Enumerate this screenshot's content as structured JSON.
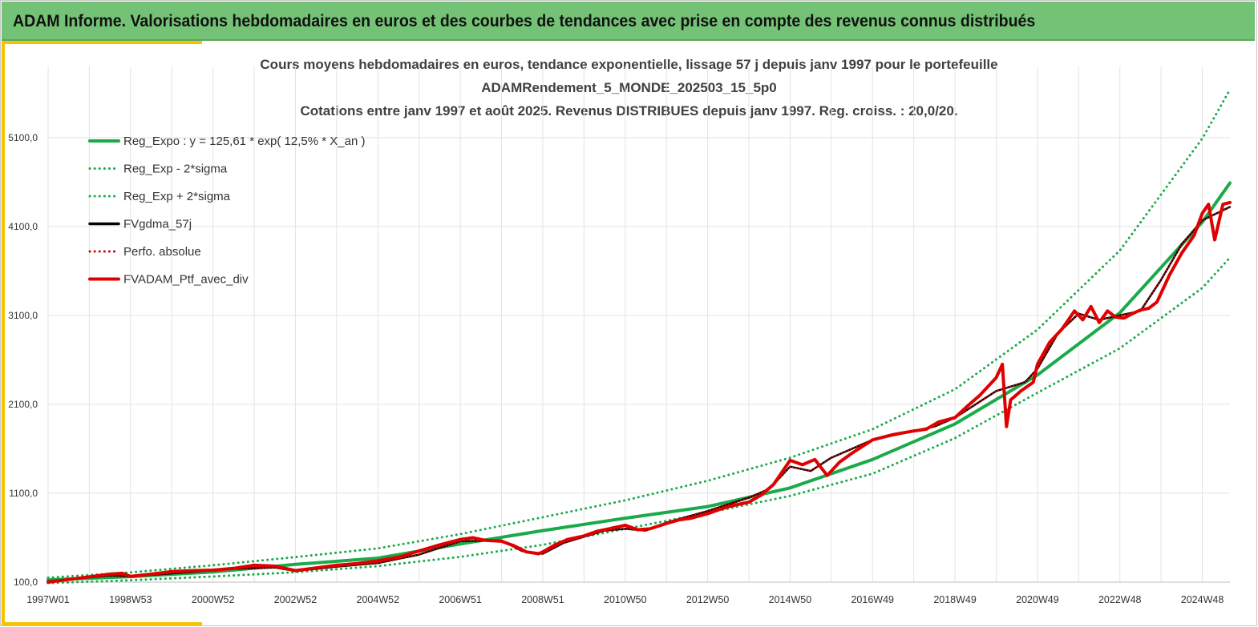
{
  "banner": {
    "title": "ADAM Informe. Valorisations hebdomadaires en euros et des courbes de tendances avec prise en compte des revenus connus distribués"
  },
  "colors": {
    "banner": "#74c276",
    "accent": "#f5c200",
    "trend": "#1aaa4a",
    "portfolio": "#e00000",
    "smooth": "#000000",
    "grid": "#e3e3e3"
  },
  "chart_data": {
    "type": "line",
    "title_lines": [
      "Cours moyens hebdomadaires  en euros, tendance exponentielle, lissage 57 j depuis janv 1997 pour le portefeuille",
      "ADAMRendement_5_MONDE_202503_15_5p0",
      "Cotations  entre janv 1997 et août 2025. Revenus DISTRIBUES depuis janv 1997. Reg. croiss. : 20,0/20."
    ],
    "xlabel": "",
    "ylabel": "",
    "ylim": [
      100,
      5900
    ],
    "xlim": [
      1997.0,
      2025.67
    ],
    "y_ticks": [
      "100,0",
      "1100,0",
      "2100,0",
      "3100,0",
      "4100,0",
      "5100,0"
    ],
    "x_ticks": [
      {
        "label": "1997W01",
        "x": 1997.0
      },
      {
        "label": "1998W53",
        "x": 1999.0
      },
      {
        "label": "2000W52",
        "x": 2001.0
      },
      {
        "label": "2002W52",
        "x": 2003.0
      },
      {
        "label": "2004W52",
        "x": 2005.0
      },
      {
        "label": "2006W51",
        "x": 2007.0
      },
      {
        "label": "2008W51",
        "x": 2009.0
      },
      {
        "label": "2010W50",
        "x": 2011.0
      },
      {
        "label": "2012W50",
        "x": 2013.0
      },
      {
        "label": "2014W50",
        "x": 2015.0
      },
      {
        "label": "2016W49",
        "x": 2017.0
      },
      {
        "label": "2018W49",
        "x": 2019.0
      },
      {
        "label": "2020W49",
        "x": 2021.0
      },
      {
        "label": "2022W48",
        "x": 2023.0
      },
      {
        "label": "2024W48",
        "x": 2025.0
      }
    ],
    "grid": true,
    "legend_position": "top-left",
    "series": [
      {
        "name": "Reg_Expo : y = 125,61 * exp( 12,5% *  X_an )",
        "style": "solid-thick",
        "color": "#1aaa4a",
        "x": [
          1997.0,
          1999.0,
          2001.0,
          2003.0,
          2005.0,
          2007.0,
          2009.0,
          2011.0,
          2013.0,
          2015.0,
          2017.0,
          2019.0,
          2021.0,
          2023.0,
          2025.0,
          2025.67
        ],
        "values": [
          126,
          162,
          215,
          300,
          370,
          530,
          680,
          820,
          950,
          1160,
          1480,
          1880,
          2430,
          3130,
          4150,
          4590
        ]
      },
      {
        "name": "Reg_Exp - 2*sigma",
        "style": "dotted",
        "color": "#1aaa4a",
        "x": [
          1997.0,
          1999.0,
          2001.0,
          2003.0,
          2005.0,
          2007.0,
          2009.0,
          2011.0,
          2013.0,
          2015.0,
          2017.0,
          2019.0,
          2021.0,
          2023.0,
          2025.0,
          2025.67
        ],
        "values": [
          90,
          122,
          164,
          212,
          280,
          385,
          520,
          700,
          880,
          1070,
          1320,
          1720,
          2230,
          2730,
          3410,
          3750
        ]
      },
      {
        "name": "Reg_Exp + 2*sigma",
        "style": "dotted",
        "color": "#1aaa4a",
        "x": [
          1997.0,
          1999.0,
          2001.0,
          2003.0,
          2005.0,
          2007.0,
          2009.0,
          2011.0,
          2013.0,
          2015.0,
          2017.0,
          2019.0,
          2021.0,
          2023.0,
          2025.0,
          2025.67
        ],
        "values": [
          150,
          210,
          290,
          382,
          480,
          640,
          830,
          1020,
          1240,
          1500,
          1820,
          2270,
          2940,
          3830,
          5090,
          5640
        ]
      },
      {
        "name": "FVgdma_57j",
        "style": "solid",
        "color": "#000000",
        "x": [
          1997.0,
          1998.5,
          1999.0,
          2000.5,
          2001.5,
          2002.5,
          2003.0,
          2004.0,
          2005.0,
          2006.0,
          2007.0,
          2008.0,
          2008.5,
          2009.0,
          2009.5,
          2010.5,
          2011.0,
          2011.5,
          2012.0,
          2013.0,
          2014.0,
          2014.5,
          2015.0,
          2015.5,
          2016.0,
          2017.0,
          2018.0,
          2018.5,
          2019.0,
          2020.0,
          2020.7,
          2021.0,
          2021.5,
          2022.0,
          2022.5,
          2023.0,
          2023.5,
          2024.0,
          2024.5,
          2025.0,
          2025.67
        ],
        "values": [
          110,
          175,
          165,
          215,
          250,
          265,
          225,
          275,
          315,
          410,
          560,
          570,
          450,
          420,
          540,
          680,
          700,
          680,
          770,
          900,
          1050,
          1150,
          1400,
          1350,
          1500,
          1700,
          1800,
          1850,
          1950,
          2250,
          2350,
          2500,
          2900,
          3120,
          3050,
          3100,
          3150,
          3500,
          3900,
          4170,
          4320
        ]
      },
      {
        "name": "Perfo. absolue",
        "style": "dotted",
        "color": "#e00000",
        "x": [
          1997.0,
          1998.5,
          1999.0,
          2000.5,
          2001.5,
          2002.5,
          2003.0,
          2004.0,
          2005.0,
          2006.0,
          2007.0,
          2008.0,
          2008.5,
          2009.0,
          2009.5,
          2010.5,
          2011.0,
          2011.5,
          2012.0,
          2013.0,
          2014.0,
          2014.5,
          2015.0,
          2015.5,
          2016.0,
          2017.0,
          2018.0,
          2018.5,
          2019.0,
          2020.0,
          2020.7,
          2021.0,
          2021.5,
          2022.0,
          2022.5,
          2023.0,
          2023.5,
          2024.0,
          2024.5,
          2025.0,
          2025.67
        ],
        "values": [
          110,
          175,
          165,
          215,
          250,
          265,
          225,
          275,
          315,
          410,
          560,
          570,
          450,
          420,
          540,
          680,
          700,
          680,
          770,
          900,
          1050,
          1150,
          1400,
          1350,
          1500,
          1700,
          1800,
          1850,
          1950,
          2250,
          2350,
          2500,
          2900,
          3120,
          3050,
          3100,
          3150,
          3500,
          3900,
          4170,
          4320
        ]
      },
      {
        "name": "FVADAM_Ptf_avec_div",
        "style": "solid-thick",
        "color": "#e00000",
        "x": [
          1997.0,
          1997.5,
          1998.0,
          1998.5,
          1998.8,
          1999.0,
          1999.5,
          2000.0,
          2000.5,
          2001.0,
          2001.5,
          2002.0,
          2002.5,
          2002.8,
          2003.0,
          2003.5,
          2004.0,
          2004.5,
          2005.0,
          2005.5,
          2006.0,
          2006.5,
          2007.0,
          2007.3,
          2007.6,
          2008.0,
          2008.3,
          2008.6,
          2008.9,
          2009.0,
          2009.3,
          2009.6,
          2010.0,
          2010.3,
          2010.6,
          2011.0,
          2011.3,
          2011.6,
          2012.0,
          2012.3,
          2012.6,
          2013.0,
          2013.3,
          2013.6,
          2014.0,
          2014.3,
          2014.6,
          2015.0,
          2015.3,
          2015.6,
          2015.9,
          2016.2,
          2016.5,
          2017.0,
          2017.5,
          2018.0,
          2018.3,
          2018.6,
          2019.0,
          2019.3,
          2019.6,
          2020.0,
          2020.15,
          2020.25,
          2020.35,
          2020.6,
          2020.9,
          2021.0,
          2021.3,
          2021.6,
          2021.9,
          2022.1,
          2022.3,
          2022.5,
          2022.7,
          2022.9,
          2023.1,
          2023.3,
          2023.5,
          2023.7,
          2023.9,
          2024.2,
          2024.5,
          2024.8,
          2025.0,
          2025.15,
          2025.3,
          2025.5,
          2025.67
        ],
        "values": [
          100,
          130,
          160,
          190,
          200,
          165,
          190,
          220,
          230,
          235,
          255,
          290,
          280,
          250,
          230,
          260,
          290,
          310,
          340,
          380,
          450,
          520,
          580,
          600,
          570,
          560,
          510,
          440,
          420,
          440,
          520,
          580,
          620,
          670,
          700,
          740,
          690,
          700,
          760,
          800,
          820,
          870,
          920,
          960,
          1000,
          1080,
          1200,
          1470,
          1420,
          1480,
          1300,
          1450,
          1550,
          1700,
          1760,
          1800,
          1820,
          1900,
          1950,
          2080,
          2200,
          2400,
          2550,
          1850,
          2150,
          2250,
          2350,
          2550,
          2800,
          2950,
          3150,
          3050,
          3200,
          3020,
          3150,
          3080,
          3070,
          3120,
          3160,
          3180,
          3250,
          3550,
          3800,
          4000,
          4250,
          4350,
          3950,
          4350,
          4370
        ]
      }
    ]
  }
}
